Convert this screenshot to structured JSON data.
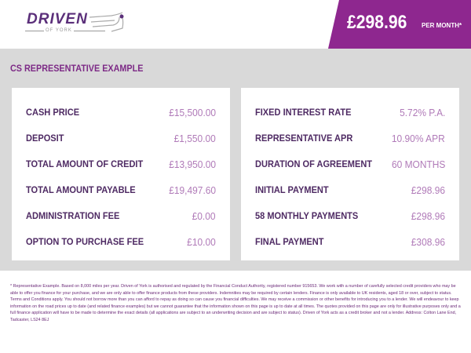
{
  "header": {
    "logo_text": "DRIVEN",
    "logo_subtext": "OF YORK",
    "price": "£298.96",
    "price_suffix": "PER MONTH*"
  },
  "section_title": "CS REPRESENTATIVE EXAMPLE",
  "left_card": [
    {
      "label": "CASH PRICE",
      "value": "£15,500.00"
    },
    {
      "label": "DEPOSIT",
      "value": "£1,550.00"
    },
    {
      "label": "TOTAL AMOUNT OF CREDIT",
      "value": "£13,950.00"
    },
    {
      "label": "TOTAL AMOUNT PAYABLE",
      "value": "£19,497.60"
    },
    {
      "label": "ADMINISTRATION FEE",
      "value": "£0.00"
    },
    {
      "label": "OPTION TO PURCHASE FEE",
      "value": "£10.00"
    }
  ],
  "right_card": [
    {
      "label": "FIXED INTEREST RATE",
      "value": "5.72% P.A."
    },
    {
      "label": "REPRESENTATIVE APR",
      "value": "10.90% APR"
    },
    {
      "label": "DURATION OF AGREEMENT",
      "value": "60 MONTHS"
    },
    {
      "label": "INITIAL PAYMENT",
      "value": "£298.96"
    },
    {
      "label": "58 MONTHLY PAYMENTS",
      "value": "£298.96"
    },
    {
      "label": "FINAL PAYMENT",
      "value": "£308.96"
    }
  ],
  "disclaimer": "* Representative Example. Based on 8,000 miles per year. Driven of York is authorised and regulated by the Financial Conduct Authority, registered number 915653. We work with a number of carefully selected credit providers who may be able to offer you finance for your purchase, and we are only able to offer finance products from these providers. Indemnities may be required by certain lenders. Finance is only available to UK residents, aged 18 or over, subject to status. Terms and Conditions apply. You should not borrow more than you can afford to repay as doing so can cause you financial difficulties. We may receive a commission or other benefits for introducing you to a lender. We will endeavour to keep information on the road prices up to date (and related finance examples) but we cannot guarantee that the information shown on this page is up to date at all times. The quotes provided on this page are only for illustrative purposes only and a full finance application will have to be made to determine the exact details (all applications are subject to an underwriting decision and are subject to status). Driven of York acts as a credit broker and not a lender. Address: Colton Lane End, Tadcaster, LS24 8EJ",
  "colors": {
    "accent": "#8e278f",
    "label": "#4e2a63",
    "value": "#b07ab8",
    "band": "#d9d9d9"
  }
}
